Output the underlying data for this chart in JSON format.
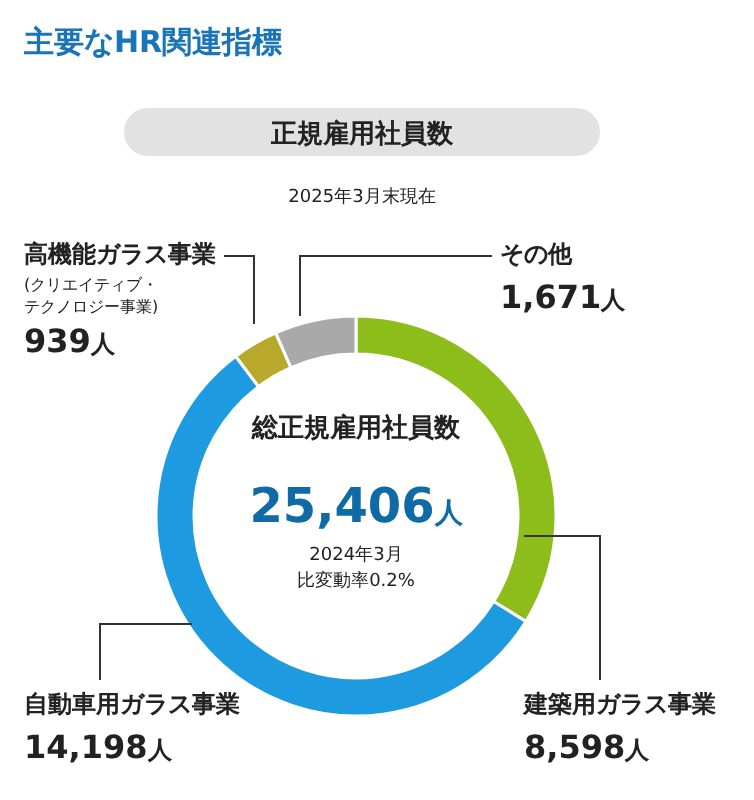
{
  "chart_data": {
    "type": "donut",
    "title": "主要なHR関連指標",
    "subtitle": "正規雇用社員数",
    "annotations": [
      "2025年3月末現在",
      "総正規雇用社員数",
      "25,406人",
      "2024年3月",
      "比変動率0.2%"
    ],
    "categories": [
      "建築用ガラス事業",
      "自動車用ガラス事業",
      "高機能ガラス事業(クリエイティブ・テクノロジー事業)",
      "その他"
    ],
    "values": [
      8598,
      14198,
      939,
      1671
    ],
    "colors": [
      "#8cbd1a",
      "#1e9be0",
      "#b8a82c",
      "#a9a9a9"
    ],
    "value_labels": [
      "8,598人",
      "14,198人",
      "939人",
      "1,671人"
    ]
  }
}
